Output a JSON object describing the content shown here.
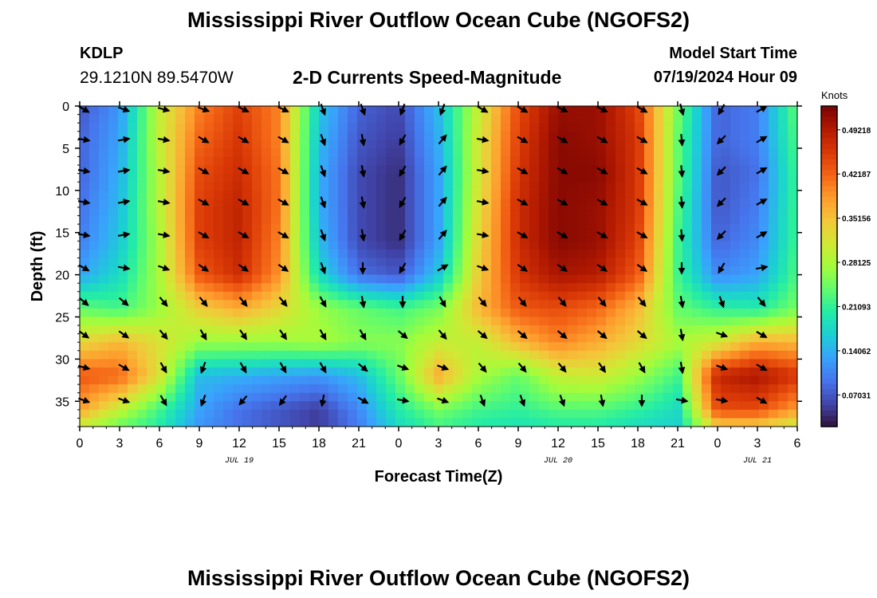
{
  "page": {
    "title": "Mississippi River Outflow Ocean Cube (NGOFS2)",
    "station": "KDLP",
    "coordinates": "29.1210N  89.5470W",
    "subtitle": "2-D Currents Speed-Magnitude",
    "model_start_label": "Model Start Time",
    "model_start_value": "07/19/2024 Hour 09",
    "repeated_title": "Mississippi River Outflow Ocean Cube (NGOFS2)"
  },
  "chart_data": {
    "type": "heatmap",
    "title": "2-D Currents Speed-Magnitude",
    "xlabel": "Forecast Time(Z)",
    "ylabel": "Depth (ft)",
    "x_tick_labels": [
      "0",
      "3",
      "6",
      "9",
      "12",
      "15",
      "18",
      "21",
      "0",
      "3",
      "6",
      "9",
      "12",
      "15",
      "18",
      "21",
      "0",
      "3",
      "6"
    ],
    "x_date_labels": [
      {
        "label": "JUL 19",
        "hour_index": 12
      },
      {
        "label": "JUL 20",
        "hour_index": 36
      },
      {
        "label": "JUL 21",
        "hour_index": 51
      }
    ],
    "xlim_hours": [
      0,
      54
    ],
    "y_ticks": [
      0,
      5,
      10,
      15,
      20,
      25,
      30,
      35
    ],
    "ylim": [
      38,
      0
    ],
    "colorbar": {
      "label": "Knots",
      "ticks": [
        "0.49218",
        "0.42187",
        "0.35156",
        "0.28125",
        "0.21093",
        "0.14062",
        "0.07031"
      ],
      "range": [
        0.02,
        0.53
      ],
      "colormap": [
        "#30123b",
        "#4145ab",
        "#4675ed",
        "#39a2fc",
        "#1bcfd4",
        "#24eca6",
        "#61fc6c",
        "#a4fc3b",
        "#d1e834",
        "#f3c63a",
        "#fe9b2d",
        "#f36315",
        "#d93806",
        "#b11901",
        "#7a0403"
      ]
    },
    "arrow_color": "#000000",
    "speed_description": "speed (knots) at time knots (hours) vs depth (ft)",
    "speed_grid": {
      "times": [
        0,
        3,
        6,
        9,
        12,
        15,
        18,
        21,
        24,
        27,
        30,
        33,
        36,
        39,
        42,
        45,
        48,
        51,
        54
      ],
      "depths": [
        0,
        4,
        8,
        12,
        16,
        20,
        24,
        28,
        32,
        36,
        38
      ],
      "values": [
        [
          0.07,
          0.12,
          0.3,
          0.4,
          0.45,
          0.4,
          0.16,
          0.08,
          0.06,
          0.15,
          0.3,
          0.44,
          0.51,
          0.51,
          0.45,
          0.25,
          0.08,
          0.1,
          0.24
        ],
        [
          0.08,
          0.13,
          0.3,
          0.42,
          0.46,
          0.4,
          0.15,
          0.07,
          0.05,
          0.14,
          0.31,
          0.45,
          0.52,
          0.51,
          0.46,
          0.24,
          0.08,
          0.1,
          0.23
        ],
        [
          0.08,
          0.14,
          0.29,
          0.44,
          0.47,
          0.41,
          0.14,
          0.06,
          0.04,
          0.13,
          0.31,
          0.46,
          0.52,
          0.52,
          0.46,
          0.24,
          0.07,
          0.09,
          0.22
        ],
        [
          0.09,
          0.15,
          0.29,
          0.45,
          0.48,
          0.41,
          0.14,
          0.06,
          0.04,
          0.13,
          0.32,
          0.47,
          0.52,
          0.51,
          0.46,
          0.23,
          0.07,
          0.1,
          0.22
        ],
        [
          0.1,
          0.16,
          0.28,
          0.45,
          0.48,
          0.4,
          0.15,
          0.06,
          0.04,
          0.13,
          0.33,
          0.47,
          0.52,
          0.51,
          0.45,
          0.22,
          0.08,
          0.11,
          0.22
        ],
        [
          0.13,
          0.18,
          0.28,
          0.43,
          0.47,
          0.39,
          0.18,
          0.09,
          0.07,
          0.16,
          0.34,
          0.46,
          0.5,
          0.49,
          0.43,
          0.22,
          0.11,
          0.13,
          0.23
        ],
        [
          0.24,
          0.22,
          0.27,
          0.34,
          0.37,
          0.33,
          0.27,
          0.24,
          0.22,
          0.25,
          0.36,
          0.43,
          0.44,
          0.42,
          0.36,
          0.24,
          0.21,
          0.2,
          0.25
        ],
        [
          0.33,
          0.36,
          0.32,
          0.27,
          0.27,
          0.27,
          0.28,
          0.26,
          0.26,
          0.3,
          0.3,
          0.36,
          0.4,
          0.37,
          0.33,
          0.28,
          0.31,
          0.37,
          0.36
        ],
        [
          0.43,
          0.42,
          0.32,
          0.15,
          0.14,
          0.13,
          0.12,
          0.15,
          0.24,
          0.37,
          0.28,
          0.24,
          0.3,
          0.31,
          0.27,
          0.22,
          0.48,
          0.5,
          0.46
        ],
        [
          0.38,
          0.3,
          0.22,
          0.13,
          0.09,
          0.07,
          0.05,
          0.11,
          0.2,
          0.25,
          0.22,
          0.21,
          0.23,
          0.23,
          0.21,
          0.18,
          0.44,
          0.44,
          0.38
        ],
        [
          0.3,
          0.24,
          0.2,
          0.12,
          0.09,
          0.07,
          0.05,
          0.1,
          0.18,
          0.22,
          0.2,
          0.19,
          0.2,
          0.2,
          0.18,
          0.17,
          0.34,
          0.34,
          0.3
        ]
      ]
    },
    "arrow_grid": {
      "times": [
        0,
        3,
        6,
        9,
        12,
        15,
        18,
        21,
        24,
        27,
        30,
        33,
        36,
        39,
        42,
        45,
        48,
        51
      ],
      "depths": [
        0,
        3.6,
        7.3,
        11,
        14.9,
        18.8,
        22.8,
        26.7,
        30.6,
        34.5
      ],
      "direction_deg": [
        [
          120,
          110,
          105,
          110,
          115,
          115,
          160,
          160,
          200,
          200,
          120,
          120,
          115,
          115,
          120,
          165,
          210,
          60
        ],
        [
          100,
          80,
          100,
          120,
          120,
          120,
          160,
          170,
          210,
          40,
          100,
          120,
          120,
          120,
          120,
          175,
          225,
          60
        ],
        [
          100,
          80,
          100,
          120,
          120,
          120,
          160,
          170,
          210,
          40,
          100,
          120,
          120,
          120,
          120,
          175,
          225,
          60
        ],
        [
          100,
          80,
          100,
          120,
          120,
          120,
          160,
          170,
          210,
          40,
          100,
          120,
          120,
          120,
          120,
          175,
          225,
          60
        ],
        [
          100,
          80,
          100,
          120,
          120,
          120,
          160,
          170,
          210,
          40,
          100,
          120,
          120,
          120,
          120,
          175,
          225,
          60
        ],
        [
          120,
          100,
          110,
          125,
          125,
          125,
          160,
          180,
          210,
          60,
          110,
          125,
          125,
          125,
          125,
          180,
          210,
          80
        ],
        [
          130,
          130,
          140,
          140,
          140,
          140,
          150,
          170,
          180,
          150,
          140,
          140,
          140,
          140,
          140,
          170,
          160,
          140
        ],
        [
          125,
          125,
          140,
          150,
          145,
          145,
          150,
          150,
          130,
          140,
          130,
          130,
          130,
          130,
          130,
          170,
          110,
          120
        ],
        [
          105,
          120,
          150,
          200,
          150,
          150,
          150,
          130,
          110,
          110,
          140,
          140,
          140,
          145,
          150,
          170,
          110,
          120
        ],
        [
          110,
          110,
          150,
          200,
          220,
          215,
          190,
          120,
          100,
          110,
          160,
          160,
          160,
          170,
          180,
          100,
          100,
          120
        ]
      ]
    }
  }
}
